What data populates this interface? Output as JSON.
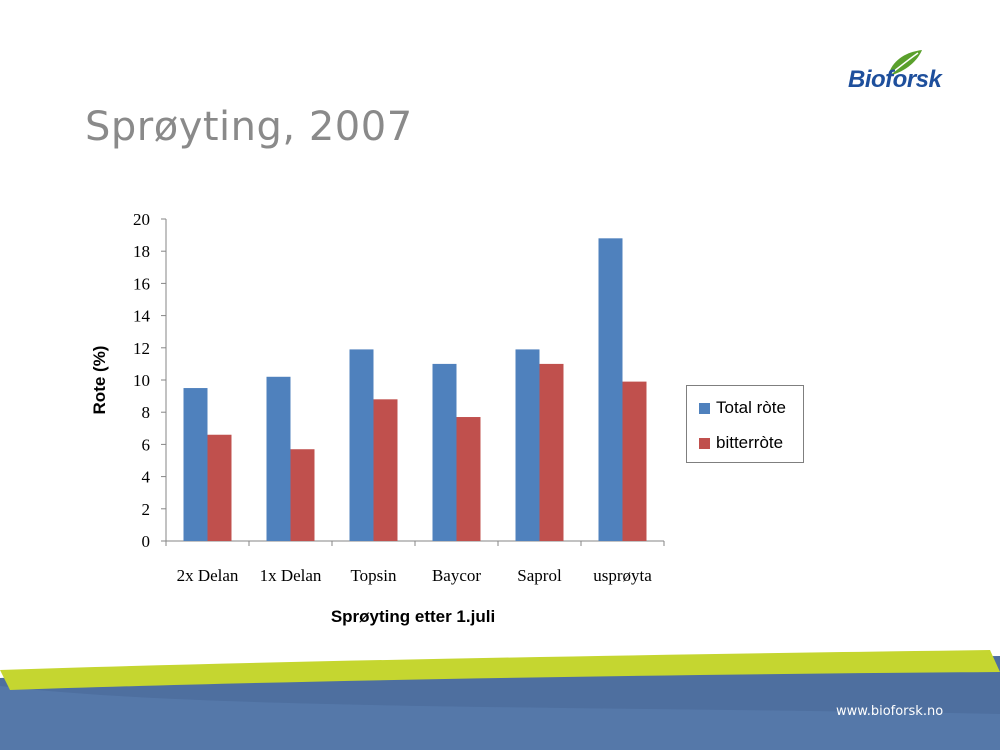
{
  "slide": {
    "title": "Sprøyting, 2007",
    "logo_text": "Bioforsk",
    "url": "www.bioforsk.no"
  },
  "colors": {
    "title": "#8a8a8a",
    "series_total": "#4f81bd",
    "series_bitter": "#c0504d",
    "footer_blue": "#4e6f9f",
    "footer_green": "#c5d630",
    "logo_blue": "#1e4f9c",
    "logo_green": "#5aa02c"
  },
  "chart_data": {
    "type": "bar",
    "title": "",
    "xlabel": "Sprøyting etter 1.juli",
    "ylabel": "Rote (%)",
    "categories": [
      "2x Delan",
      "1x Delan",
      "Topsin",
      "Baycor",
      "Saprol",
      "usprøyta"
    ],
    "series": [
      {
        "name": "Total ròte",
        "values": [
          9.5,
          10.2,
          11.9,
          11.0,
          11.9,
          18.8
        ]
      },
      {
        "name": "bitterròte",
        "values": [
          6.6,
          5.7,
          8.8,
          7.7,
          11.0,
          9.9
        ]
      }
    ],
    "ylim": [
      0,
      20
    ],
    "yticks": [
      "0",
      "2",
      "4",
      "6",
      "8",
      "10",
      "12",
      "14",
      "16",
      "18",
      "20"
    ],
    "grid": false,
    "legend": "right"
  }
}
